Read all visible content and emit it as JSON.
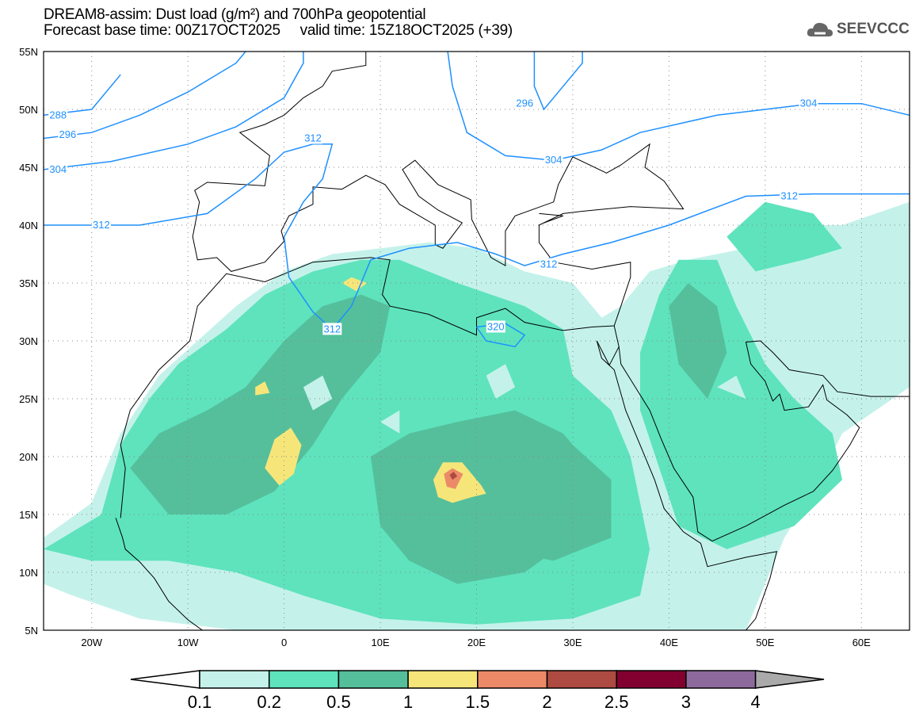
{
  "header": {
    "title_line1": "DREAM8-assim: Dust load (g/m²) and 700hPa geopotential",
    "title_line2": "Forecast base time: 00Z17OCT2025     valid time: 15Z18OCT2025 (+39)",
    "logo_text": "SEEVCCC"
  },
  "axes": {
    "lat_labels": [
      "55N",
      "50N",
      "45N",
      "40N",
      "35N",
      "30N",
      "25N",
      "20N",
      "15N",
      "10N",
      "5N"
    ],
    "lat_values": [
      55,
      50,
      45,
      40,
      35,
      30,
      25,
      20,
      15,
      10,
      5
    ],
    "lon_labels": [
      "20W",
      "10W",
      "0",
      "10E",
      "20E",
      "30E",
      "40E",
      "50E",
      "60E"
    ],
    "lon_values": [
      -20,
      -10,
      0,
      10,
      20,
      30,
      40,
      50,
      60
    ],
    "lon_range": [
      -25,
      65
    ],
    "lat_range": [
      5,
      55
    ]
  },
  "contours": {
    "labels": [
      {
        "text": "288",
        "lon": -23.5,
        "lat": 49.5
      },
      {
        "text": "296",
        "lon": -22.5,
        "lat": 47.8
      },
      {
        "text": "304",
        "lon": -23.5,
        "lat": 44.8
      },
      {
        "text": "312",
        "lon": -19,
        "lat": 40
      },
      {
        "text": "312",
        "lon": 3,
        "lat": 47.5
      },
      {
        "text": "296",
        "lon": 25,
        "lat": 50.5
      },
      {
        "text": "304",
        "lon": 28,
        "lat": 45.6
      },
      {
        "text": "304",
        "lon": 54.5,
        "lat": 50.5
      },
      {
        "text": "312",
        "lon": 52.5,
        "lat": 42.5
      },
      {
        "text": "312",
        "lon": 27.5,
        "lat": 36.6
      },
      {
        "text": "312",
        "lon": 5,
        "lat": 31
      },
      {
        "text": "320",
        "lon": 22,
        "lat": 31.2
      }
    ]
  },
  "colorbar": {
    "ticks": [
      "0.1",
      "0.2",
      "0.5",
      "1",
      "1.5",
      "2",
      "2.5",
      "3",
      "4"
    ],
    "colors": [
      "#ffffff",
      "#c4f2ea",
      "#5ee3bd",
      "#55bf9b",
      "#f6e67a",
      "#ec8a68",
      "#ad4a41",
      "#820030",
      "#8d6a9c",
      "#aaaaaa"
    ]
  },
  "colors": {
    "contour": "#1e90ff",
    "coast": "#000000"
  }
}
